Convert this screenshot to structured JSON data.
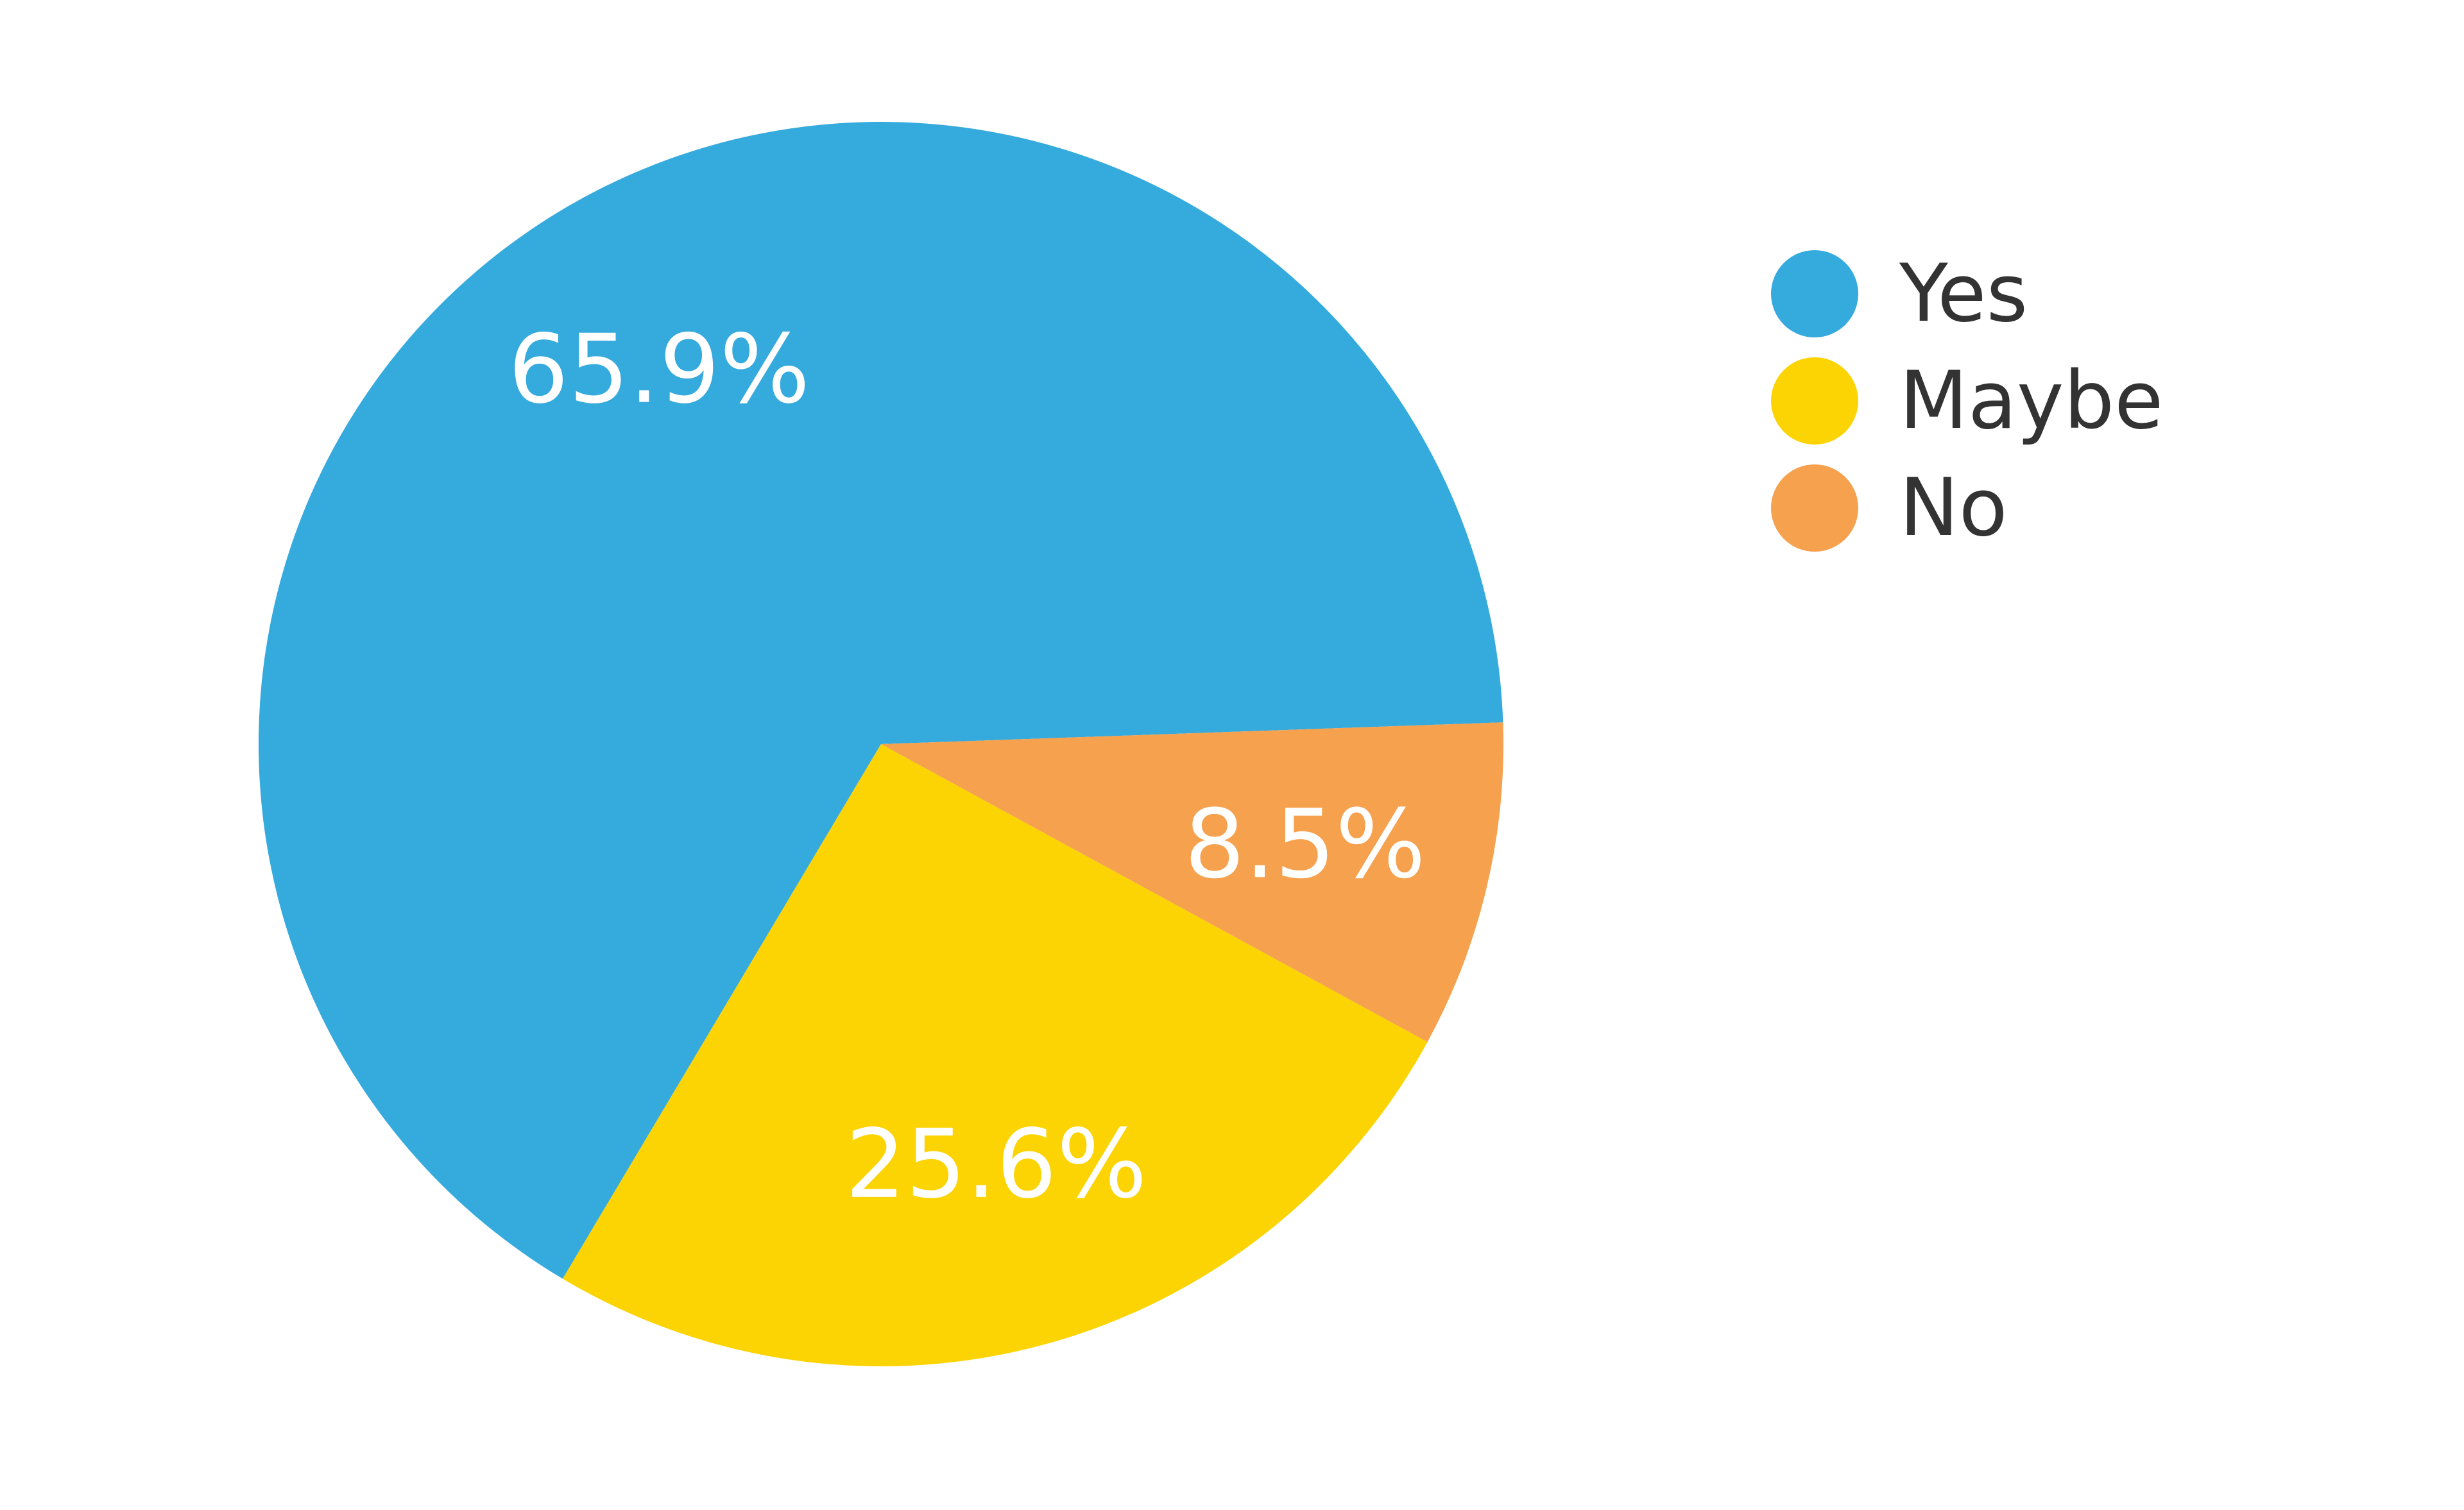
{
  "chart_data": {
    "type": "pie",
    "categories": [
      "Yes",
      "Maybe",
      "No"
    ],
    "values": [
      65.9,
      25.6,
      8.5
    ],
    "data_labels": [
      "65.9%",
      "25.6%",
      "8.5%"
    ],
    "colors": [
      "#35aadd",
      "#fcd303",
      "#f5a14e"
    ],
    "legend": {
      "placement": "right",
      "entries": [
        "Yes",
        "Maybe",
        "No"
      ]
    },
    "title": "",
    "start_angle_deg": -2,
    "direction": "counterclockwise"
  }
}
